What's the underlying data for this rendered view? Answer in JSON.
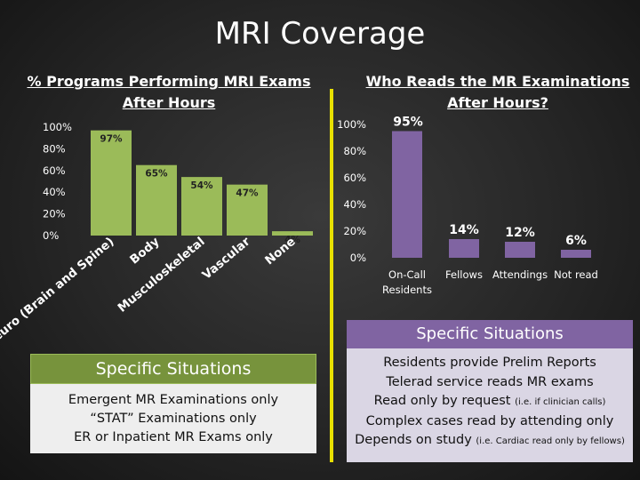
{
  "title": "MRI Coverage",
  "left_section": {
    "title_line1": "% Programs Performing MRI Exams",
    "title_line2": "After Hours"
  },
  "right_section": {
    "title_line1": "Who Reads the MR Examinations",
    "title_line2": "After Hours?"
  },
  "chart_data": [
    {
      "type": "bar",
      "title": "% Programs Performing MRI Exams After Hours",
      "categories": [
        "Neuro (Brain and Spine)",
        "Body",
        "Musculoskeletal",
        "Vascular",
        "None"
      ],
      "values": [
        97,
        65,
        54,
        47,
        4
      ],
      "data_labels": [
        "97%",
        "65%",
        "54%",
        "47%",
        "4%"
      ],
      "yticks": [
        "0%",
        "20%",
        "40%",
        "60%",
        "80%",
        "100%"
      ],
      "ylim": [
        0,
        100
      ],
      "color": "#9bbb59"
    },
    {
      "type": "bar",
      "title": "Who Reads the MR Examinations After Hours?",
      "categories": [
        "On-Call Residents",
        "Fellows",
        "Attendings",
        "Not read"
      ],
      "category_lines": [
        [
          "On-Call",
          "Residents"
        ],
        [
          "Fellows"
        ],
        [
          "Attendings"
        ],
        [
          "Not read"
        ]
      ],
      "values": [
        95,
        14,
        12,
        6
      ],
      "data_labels": [
        "95%",
        "14%",
        "12%",
        "6%"
      ],
      "yticks": [
        "0%",
        "20%",
        "40%",
        "60%",
        "80%",
        "100%"
      ],
      "ylim": [
        0,
        100
      ],
      "color": "#8064a2"
    }
  ],
  "left_panel": {
    "heading": "Specific Situations",
    "lines": [
      "Emergent MR Examinations only",
      "“STAT” Examinations only",
      "ER or Inpatient MR Exams only"
    ]
  },
  "right_panel": {
    "heading": "Specific Situations",
    "line1": "Residents provide Prelim Reports",
    "line2": "Telerad service reads MR exams",
    "line3_main": "Read only by request ",
    "line3_note": "(i.e. if clinician calls)",
    "line4": "Complex cases read by attending only",
    "line5_main": "Depends on study ",
    "line5_note": "(i.e. Cardiac read only by fellows)"
  }
}
